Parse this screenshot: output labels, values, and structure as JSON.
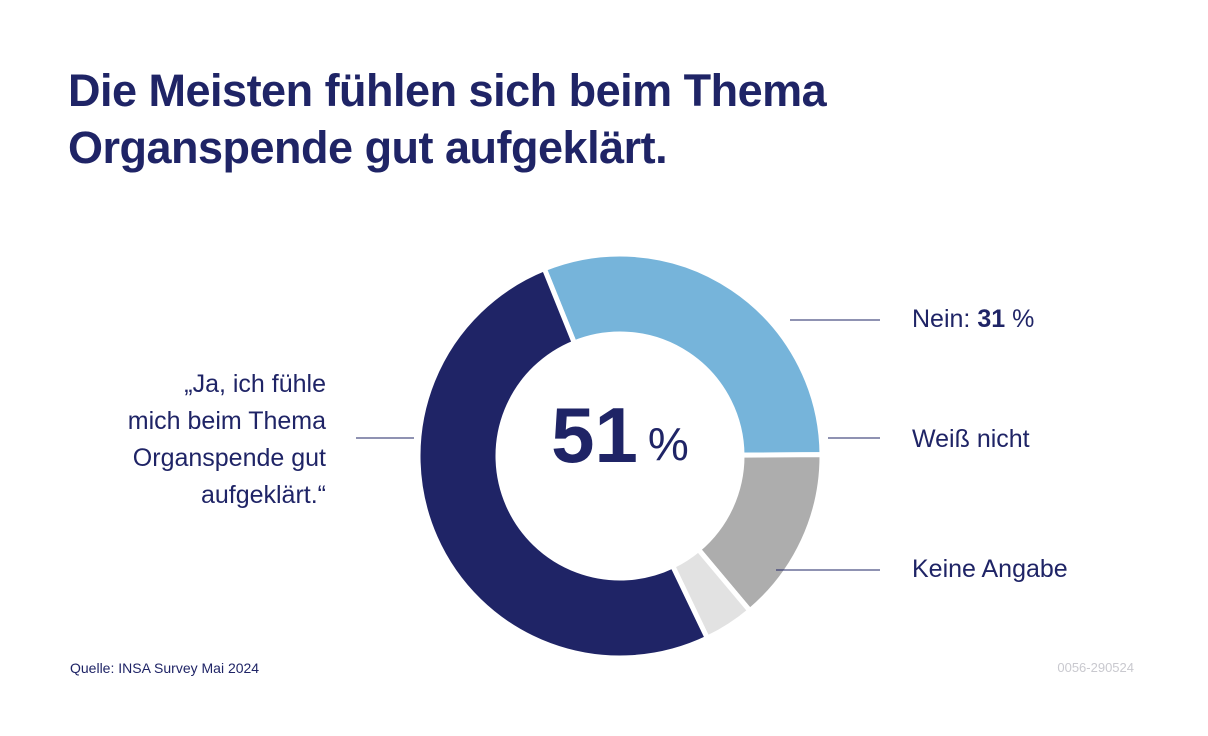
{
  "title_lines": [
    "Die Meisten fühlen sich beim Thema",
    "Organspende gut aufgeklärt."
  ],
  "chart_data": {
    "type": "pie",
    "variant": "donut",
    "center_label": {
      "value": "51",
      "unit": "%"
    },
    "slices": [
      {
        "key": "ja",
        "value": 51,
        "color": "#1f2466",
        "label_lines": [
          "„Ja, ich fühle",
          "mich beim Thema",
          "Organspende gut",
          "aufgeklärt.“"
        ]
      },
      {
        "key": "nein",
        "value": 31,
        "color": "#76b4da",
        "label_prefix": "Nein: ",
        "label_value": "31",
        "label_unit": " %"
      },
      {
        "key": "weiss",
        "value": 14,
        "color": "#adadad",
        "label_prefix": "Weiß nicht"
      },
      {
        "key": "keine",
        "value": 4,
        "color": "#e2e2e2",
        "label_prefix": "Keine Angabe"
      }
    ]
  },
  "source": "Quelle: INSA Survey Mai 2024",
  "code": "0056-290524"
}
